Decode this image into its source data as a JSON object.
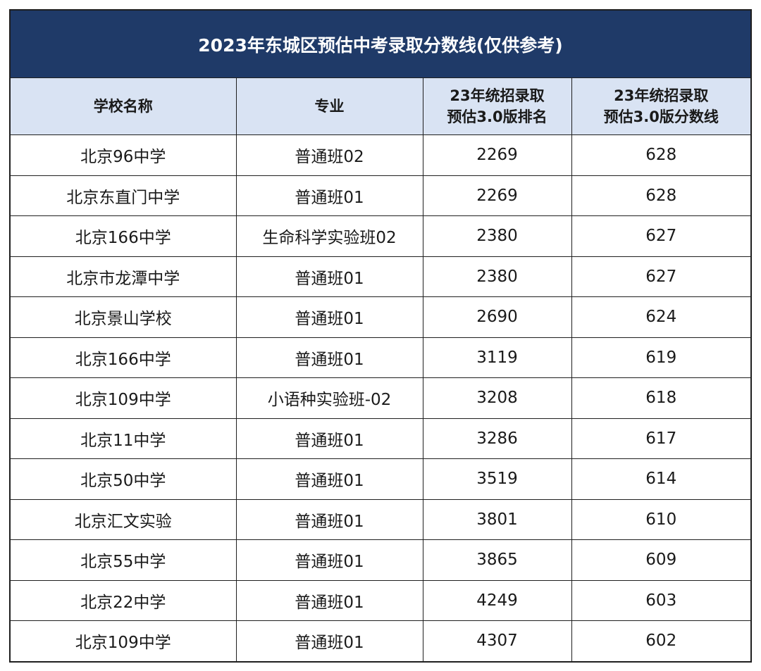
{
  "title": "2023年东城区预估中考录取分数线(仅供参考)",
  "headers": {
    "school": "学校名称",
    "major": "专业",
    "rank_line1": "23年统招录取",
    "rank_line2": "预估3.0版排名",
    "score_line1": "23年统招录取",
    "score_line2": "预估3.0版分数线"
  },
  "rows": [
    {
      "school": "北京96中学",
      "major": "普通班02",
      "rank": "2269",
      "score": "628"
    },
    {
      "school": "北京东直门中学",
      "major": "普通班01",
      "rank": "2269",
      "score": "628"
    },
    {
      "school": "北京166中学",
      "major": "生命科学实验班02",
      "rank": "2380",
      "score": "627"
    },
    {
      "school": "北京市龙潭中学",
      "major": "普通班01",
      "rank": "2380",
      "score": "627"
    },
    {
      "school": "北京景山学校",
      "major": "普通班01",
      "rank": "2690",
      "score": "624"
    },
    {
      "school": "北京166中学",
      "major": "普通班01",
      "rank": "3119",
      "score": "619"
    },
    {
      "school": "北京109中学",
      "major": "小语种实验班-02",
      "rank": "3208",
      "score": "618"
    },
    {
      "school": "北京11中学",
      "major": "普通班01",
      "rank": "3286",
      "score": "617"
    },
    {
      "school": "北京50中学",
      "major": "普通班01",
      "rank": "3519",
      "score": "614"
    },
    {
      "school": "北京汇文实验",
      "major": "普通班01",
      "rank": "3801",
      "score": "610"
    },
    {
      "school": "北京55中学",
      "major": "普通班01",
      "rank": "3865",
      "score": "609"
    },
    {
      "school": "北京22中学",
      "major": "普通班01",
      "rank": "4249",
      "score": "603"
    },
    {
      "school": "北京109中学",
      "major": "普通班01",
      "rank": "4307",
      "score": "602"
    }
  ],
  "colors": {
    "title_bg": "#1f3a68",
    "header_bg": "#d9e3f3"
  }
}
